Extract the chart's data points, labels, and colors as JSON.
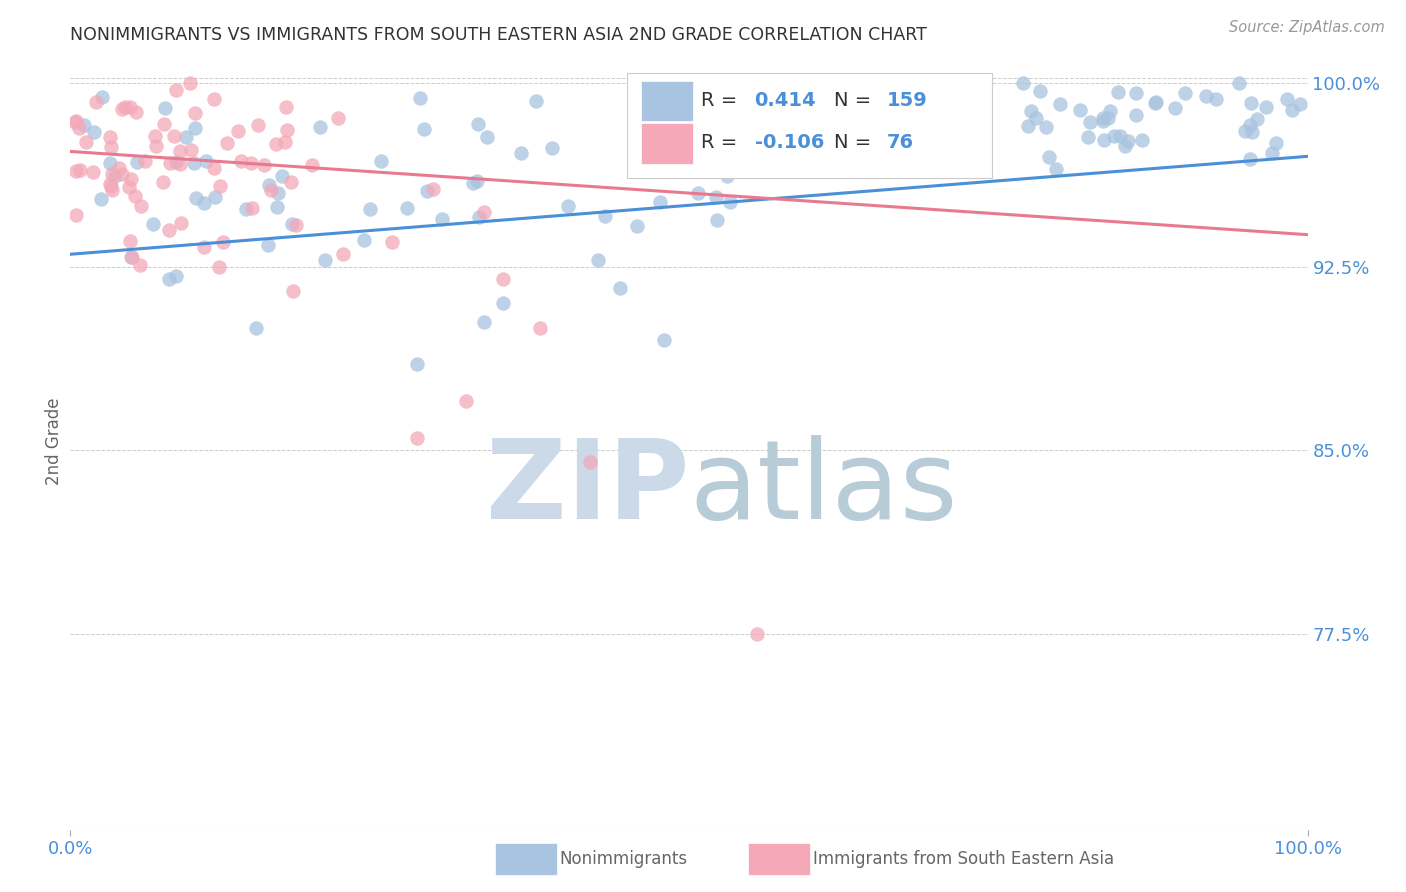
{
  "title": "NONIMMIGRANTS VS IMMIGRANTS FROM SOUTH EASTERN ASIA 2ND GRADE CORRELATION CHART",
  "source": "Source: ZipAtlas.com",
  "ylabel": "2nd Grade",
  "xmin": 0.0,
  "xmax": 1.0,
  "ymin": 0.695,
  "ymax": 1.012,
  "yticks": [
    0.775,
    0.85,
    0.925,
    1.0
  ],
  "ytick_labels": [
    "77.5%",
    "85.0%",
    "92.5%",
    "100.0%"
  ],
  "blue_R": 0.414,
  "blue_N": 159,
  "pink_R": -0.106,
  "pink_N": 76,
  "blue_color": "#a8c4e0",
  "pink_color": "#f4a8b8",
  "blue_line_color": "#4a90d9",
  "pink_line_color": "#e87a90",
  "title_color": "#333333",
  "axis_label_color": "#4a90d9",
  "legend_N_color": "#4a90d9",
  "watermark_ZIP_color": "#ccd9e8",
  "watermark_atlas_color": "#b8ccd8",
  "background_color": "#ffffff",
  "grid_color": "#cccccc",
  "blue_line_start_y": 0.93,
  "blue_line_end_y": 0.97,
  "pink_line_start_y": 0.972,
  "pink_line_end_y": 0.938
}
